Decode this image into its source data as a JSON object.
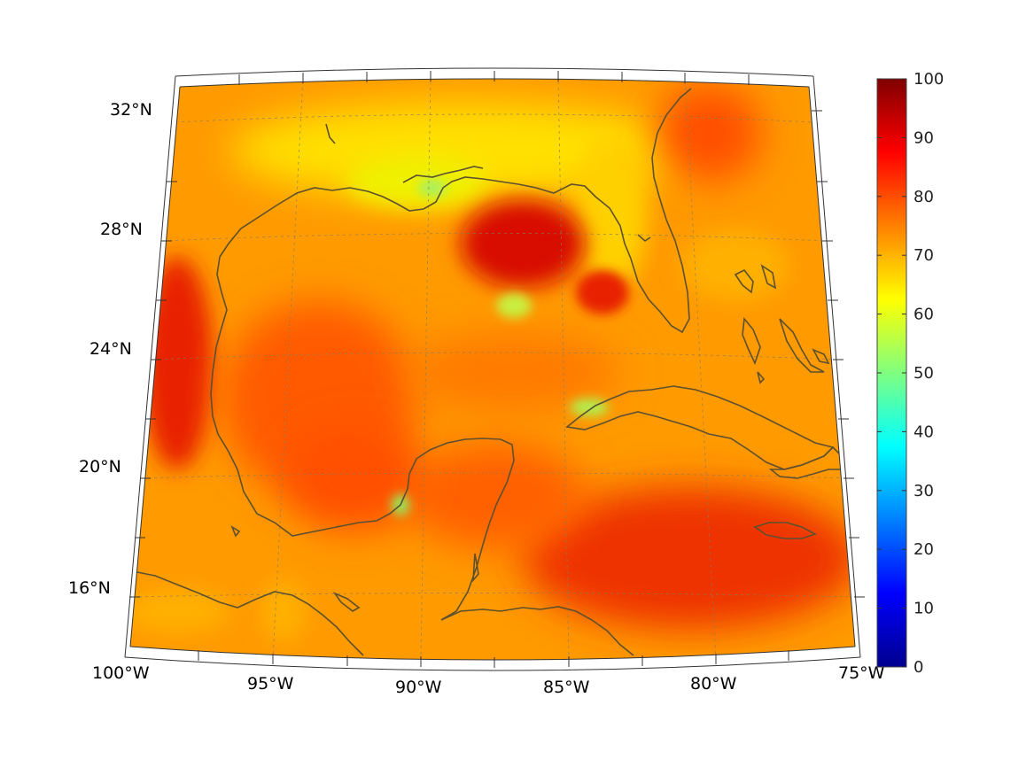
{
  "map": {
    "longitude_ticks": [
      {
        "lon": -100,
        "label": "100°W"
      },
      {
        "lon": -95,
        "label": "95°W"
      },
      {
        "lon": -90,
        "label": "90°W"
      },
      {
        "lon": -85,
        "label": "85°W"
      },
      {
        "lon": -80,
        "label": "80°W"
      },
      {
        "lon": -75,
        "label": "75°W"
      }
    ],
    "latitude_ticks": [
      {
        "lat": 32,
        "label": "32°N"
      },
      {
        "lat": 28,
        "label": "28°N"
      },
      {
        "lat": 24,
        "label": "24°N"
      },
      {
        "lat": 20,
        "label": "20°N"
      },
      {
        "lat": 16,
        "label": "16°N"
      }
    ],
    "extent": {
      "lon_min": -100,
      "lon_max": -75,
      "lat_min": 14,
      "lat_max": 33
    },
    "field_colors": {
      "background": "#ff9500",
      "high": "#e61c00",
      "low": "#f4f000",
      "coast": "#5c5030"
    }
  },
  "colorbar": {
    "min": 0,
    "max": 100,
    "ticks": [
      {
        "value": 100,
        "label": "100"
      },
      {
        "value": 90,
        "label": "90"
      },
      {
        "value": 80,
        "label": "80"
      },
      {
        "value": 70,
        "label": "70"
      },
      {
        "value": 60,
        "label": "60"
      },
      {
        "value": 50,
        "label": "50"
      },
      {
        "value": 40,
        "label": "40"
      },
      {
        "value": 30,
        "label": "30"
      },
      {
        "value": 20,
        "label": "20"
      },
      {
        "value": 10,
        "label": "10"
      },
      {
        "value": 0,
        "label": "0"
      }
    ],
    "colormap": [
      "#00008f",
      "#0000ff",
      "#0080ff",
      "#00ffff",
      "#80ff80",
      "#ffff00",
      "#ff8000",
      "#ff0000",
      "#800000"
    ]
  }
}
